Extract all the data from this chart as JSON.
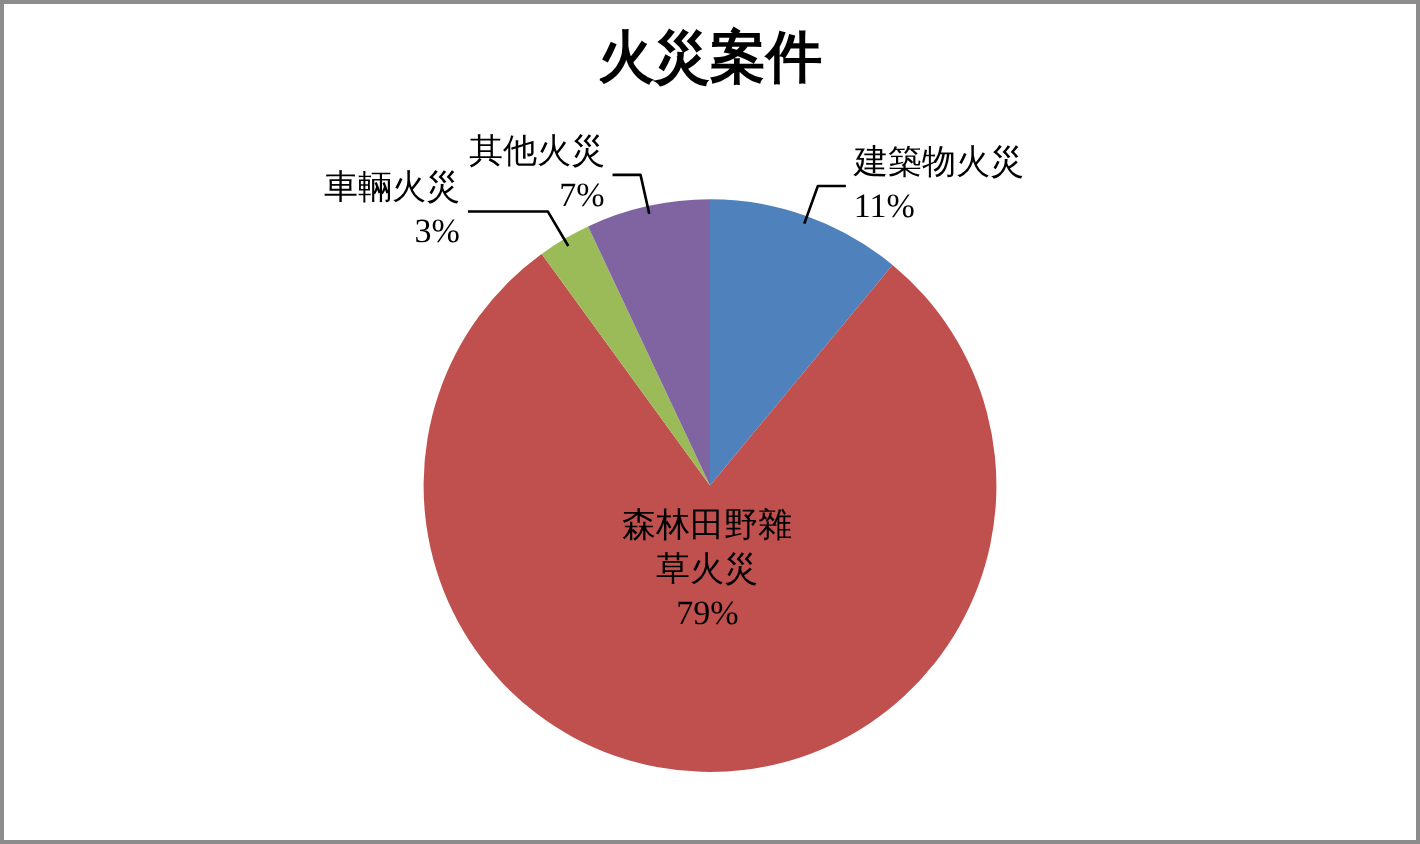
{
  "chart_data": {
    "type": "pie",
    "title": "火災案件",
    "categories": [
      "建築物火災",
      "森林田野雜草火災",
      "車輛火災",
      "其他火災"
    ],
    "values": [
      11,
      79,
      3,
      7
    ],
    "colors": [
      "#4f81bd",
      "#c0504d",
      "#9bbb59",
      "#8064a2"
    ],
    "value_labels": [
      "11%",
      "79%",
      "3%",
      "7%"
    ]
  }
}
